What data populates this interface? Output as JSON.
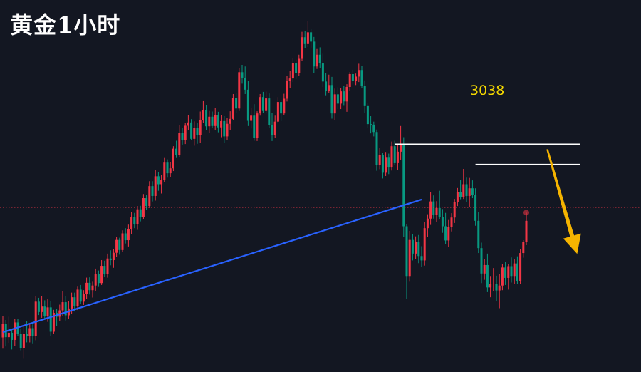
{
  "title": "黄金1小时",
  "chart_data": {
    "type": "candlestick",
    "title": "黄金1小时",
    "xlabel": "",
    "ylabel": "",
    "grid": false,
    "candles": [
      [
        3004.3,
        3012.1,
        3000.2,
        3009.3
      ],
      [
        3009.3,
        3010.7,
        3001.0,
        3004.4
      ],
      [
        3004.4,
        3011.9,
        3002.3,
        3006.0
      ],
      [
        3006.0,
        3007.4,
        2999.9,
        3003.4
      ],
      [
        3003.4,
        3011.2,
        3001.2,
        3009.8
      ],
      [
        3009.8,
        3011.1,
        3004.7,
        3005.7
      ],
      [
        3005.7,
        3007.4,
        2999.6,
        3000.4
      ],
      [
        3000.4,
        3008.5,
        2996.5,
        3005.7
      ],
      [
        3005.7,
        3010.3,
        3002.5,
        3004.7
      ],
      [
        3004.7,
        3009.6,
        3002.5,
        3007.7
      ],
      [
        3007.7,
        3009.1,
        3001.9,
        3004.9
      ],
      [
        3004.9,
        3019.3,
        3003.3,
        3017.4
      ],
      [
        3017.4,
        3018.8,
        3012.5,
        3013.6
      ],
      [
        3013.6,
        3019.4,
        3011.5,
        3015.6
      ],
      [
        3015.6,
        3017.9,
        3010.9,
        3012.1
      ],
      [
        3012.1,
        3018.5,
        3010.0,
        3015.3
      ],
      [
        3015.3,
        3017.7,
        3004.8,
        3006.4
      ],
      [
        3006.4,
        3014.4,
        3005.5,
        3013.3
      ],
      [
        3013.3,
        3014.7,
        3008.6,
        3011.9
      ],
      [
        3011.9,
        3016.3,
        3010.4,
        3014.2
      ],
      [
        3014.2,
        3021.3,
        3012.3,
        3017.2
      ],
      [
        3017.2,
        3019.4,
        3010.5,
        3012.4
      ],
      [
        3012.4,
        3017.6,
        3011.0,
        3014.9
      ],
      [
        3014.9,
        3020.7,
        3012.8,
        3019.0
      ],
      [
        3019.0,
        3020.7,
        3013.8,
        3015.8
      ],
      [
        3015.8,
        3022.9,
        3014.3,
        3021.8
      ],
      [
        3021.8,
        3023.5,
        3016.5,
        3017.4
      ],
      [
        3017.4,
        3021.6,
        3016.2,
        3020.3
      ],
      [
        3020.3,
        3026.2,
        3018.4,
        3024.3
      ],
      [
        3024.3,
        3026.3,
        3020.0,
        3021.6
      ],
      [
        3021.6,
        3024.7,
        3018.9,
        3023.3
      ],
      [
        3023.3,
        3029.5,
        3021.4,
        3027.5
      ],
      [
        3027.5,
        3028.8,
        3022.8,
        3024.2
      ],
      [
        3024.2,
        3032.6,
        3023.5,
        3030.5
      ],
      [
        3030.5,
        3032.4,
        3026.4,
        3027.6
      ],
      [
        3027.6,
        3035.0,
        3026.2,
        3033.2
      ],
      [
        3033.2,
        3036.2,
        3030.7,
        3032.6
      ],
      [
        3032.6,
        3036.7,
        3029.8,
        3035.3
      ],
      [
        3035.3,
        3041.1,
        3033.8,
        3040.0
      ],
      [
        3040.0,
        3040.8,
        3034.6,
        3036.3
      ],
      [
        3036.3,
        3043.5,
        3035.5,
        3042.4
      ],
      [
        3042.4,
        3044.3,
        3038.7,
        3039.9
      ],
      [
        3039.9,
        3045.6,
        3037.6,
        3043.9
      ],
      [
        3043.9,
        3050.3,
        3042.0,
        3048.3
      ],
      [
        3048.3,
        3049.9,
        3044.3,
        3045.7
      ],
      [
        3045.7,
        3052.4,
        3043.7,
        3051.2
      ],
      [
        3051.2,
        3052.5,
        3046.8,
        3048.3
      ],
      [
        3048.3,
        3056.8,
        3047.6,
        3055.3
      ],
      [
        3055.3,
        3056.5,
        3050.9,
        3052.4
      ],
      [
        3052.4,
        3061.5,
        3051.7,
        3059.7
      ],
      [
        3059.7,
        3061.5,
        3054.1,
        3056.1
      ],
      [
        3056.1,
        3065.6,
        3054.4,
        3063.3
      ],
      [
        3063.3,
        3064.7,
        3058.0,
        3060.4
      ],
      [
        3060.4,
        3063.7,
        3057.0,
        3061.9
      ],
      [
        3061.9,
        3070.0,
        3061.1,
        3068.3
      ],
      [
        3068.3,
        3069.5,
        3062.8,
        3064.4
      ],
      [
        3064.4,
        3068.4,
        3063.1,
        3066.2
      ],
      [
        3066.2,
        3074.3,
        3065.2,
        3073.4
      ],
      [
        3073.4,
        3076.3,
        3070.0,
        3071.1
      ],
      [
        3071.1,
        3082.0,
        3070.3,
        3079.2
      ],
      [
        3079.2,
        3080.9,
        3074.9,
        3076.6
      ],
      [
        3076.6,
        3082.9,
        3075.1,
        3081.8
      ],
      [
        3081.8,
        3085.8,
        3080.3,
        3083.0
      ],
      [
        3083.0,
        3084.2,
        3076.5,
        3077.0
      ],
      [
        3077.0,
        3083.4,
        3074.5,
        3080.9
      ],
      [
        3080.9,
        3082.7,
        3075.2,
        3078.4
      ],
      [
        3078.4,
        3087.0,
        3075.5,
        3083.8
      ],
      [
        3083.8,
        3090.8,
        3082.8,
        3087.6
      ],
      [
        3087.6,
        3089.4,
        3080.2,
        3081.6
      ],
      [
        3081.6,
        3087.2,
        3079.3,
        3085.1
      ],
      [
        3085.1,
        3087.0,
        3080.9,
        3081.7
      ],
      [
        3081.7,
        3088.3,
        3080.1,
        3085.6
      ],
      [
        3085.6,
        3086.9,
        3079.4,
        3081.2
      ],
      [
        3081.2,
        3085.7,
        3077.6,
        3083.5
      ],
      [
        3083.5,
        3085.3,
        3075.4,
        3077.9
      ],
      [
        3077.9,
        3084.7,
        3076.5,
        3082.5
      ],
      [
        3082.5,
        3087.1,
        3080.1,
        3084.3
      ],
      [
        3084.3,
        3093.4,
        3083.8,
        3091.9
      ],
      [
        3091.9,
        3093.7,
        3086.5,
        3088.1
      ],
      [
        3088.1,
        3102.9,
        3087.2,
        3101.4
      ],
      [
        3101.4,
        3104.1,
        3097.2,
        3099.4
      ],
      [
        3099.4,
        3103.5,
        3093.4,
        3095.0
      ],
      [
        3095.0,
        3098.2,
        3081.7,
        3083.6
      ],
      [
        3083.6,
        3088.3,
        3080.8,
        3085.5
      ],
      [
        3085.5,
        3089.7,
        3076.3,
        3077.3
      ],
      [
        3077.3,
        3087.1,
        3076.2,
        3086.3
      ],
      [
        3086.3,
        3093.4,
        3085.5,
        3092.3
      ],
      [
        3092.3,
        3094.2,
        3086.6,
        3087.2
      ],
      [
        3087.2,
        3094.3,
        3086.3,
        3091.8
      ],
      [
        3091.8,
        3093.6,
        3081.1,
        3082.1
      ],
      [
        3082.1,
        3086.4,
        3076.2,
        3078.5
      ],
      [
        3078.5,
        3085.5,
        3077.4,
        3083.3
      ],
      [
        3083.3,
        3092.3,
        3082.6,
        3090.5
      ],
      [
        3090.5,
        3091.2,
        3083.5,
        3086.3
      ],
      [
        3086.3,
        3093.5,
        3085.7,
        3091.7
      ],
      [
        3091.7,
        3100.0,
        3090.7,
        3098.2
      ],
      [
        3098.2,
        3101.8,
        3095.7,
        3099.1
      ],
      [
        3099.1,
        3106.6,
        3097.8,
        3104.6
      ],
      [
        3104.6,
        3106.0,
        3098.9,
        3101.1
      ],
      [
        3101.1,
        3107.8,
        3100.1,
        3106.3
      ],
      [
        3106.3,
        3116.2,
        3105.6,
        3114.2
      ],
      [
        3114.2,
        3116.6,
        3110.1,
        3111.7
      ],
      [
        3111.7,
        3120.1,
        3110.6,
        3116.0
      ],
      [
        3116.0,
        3117.4,
        3110.4,
        3112.6
      ],
      [
        3112.6,
        3114.3,
        3101.0,
        3103.5
      ],
      [
        3103.5,
        3109.9,
        3102.6,
        3107.8
      ],
      [
        3107.8,
        3110.5,
        3102.8,
        3104.6
      ],
      [
        3104.6,
        3108.2,
        3096.0,
        3098.0
      ],
      [
        3098.0,
        3101.1,
        3092.7,
        3094.6
      ],
      [
        3094.6,
        3100.5,
        3093.8,
        3096.7
      ],
      [
        3096.7,
        3099.7,
        3084.4,
        3086.3
      ],
      [
        3086.3,
        3095.4,
        3084.0,
        3093.3
      ],
      [
        3093.3,
        3095.9,
        3087.9,
        3089.9
      ],
      [
        3089.9,
        3095.7,
        3087.9,
        3094.4
      ],
      [
        3094.4,
        3096.5,
        3089.1,
        3090.7
      ],
      [
        3090.7,
        3097.0,
        3086.9,
        3096.0
      ],
      [
        3096.0,
        3101.4,
        3094.5,
        3100.7
      ],
      [
        3100.7,
        3102.3,
        3096.9,
        3098.1
      ],
      [
        3098.1,
        3100.9,
        3096.7,
        3099.8
      ],
      [
        3099.8,
        3104.5,
        3097.8,
        3102.2
      ],
      [
        3102.2,
        3103.6,
        3095.6,
        3096.5
      ],
      [
        3096.5,
        3098.4,
        3086.6,
        3089.0
      ],
      [
        3089.0,
        3090.2,
        3081.0,
        3082.4
      ],
      [
        3082.4,
        3085.3,
        3079.0,
        3082.2
      ],
      [
        3082.2,
        3083.3,
        3077.9,
        3079.5
      ],
      [
        3079.5,
        3080.4,
        3065.3,
        3067.4
      ],
      [
        3067.4,
        3073.7,
        3065.9,
        3071.0
      ],
      [
        3071.0,
        3072.0,
        3062.5,
        3064.6
      ],
      [
        3064.6,
        3072.2,
        3063.4,
        3070.1
      ],
      [
        3070.1,
        3071.6,
        3064.1,
        3066.5
      ],
      [
        3066.5,
        3076.0,
        3065.4,
        3074.3
      ],
      [
        3074.3,
        3076.3,
        3067.5,
        3068.1
      ],
      [
        3068.1,
        3074.7,
        3065.5,
        3072.3
      ],
      [
        3072.3,
        3081.7,
        3069.4,
        3074.8
      ],
      [
        3074.8,
        3077.6,
        3041.1,
        3045.0
      ],
      [
        3045.0,
        3045.9,
        3018.4,
        3026.8
      ],
      [
        3026.8,
        3043.3,
        3024.7,
        3040.0
      ],
      [
        3040.0,
        3042.0,
        3032.5,
        3035.0
      ],
      [
        3035.0,
        3041.3,
        3032.9,
        3039.4
      ],
      [
        3039.4,
        3041.8,
        3031.5,
        3034.1
      ],
      [
        3034.1,
        3037.7,
        3030.1,
        3032.5
      ],
      [
        3032.5,
        3046.5,
        3030.6,
        3044.3
      ],
      [
        3044.3,
        3049.4,
        3041.0,
        3047.8
      ],
      [
        3047.8,
        3057.4,
        3045.5,
        3054.1
      ],
      [
        3054.1,
        3056.3,
        3047.8,
        3049.3
      ],
      [
        3049.3,
        3054.2,
        3046.6,
        3051.7
      ],
      [
        3051.7,
        3058.0,
        3047.5,
        3048.5
      ],
      [
        3048.5,
        3051.3,
        3042.6,
        3045.0
      ],
      [
        3045.0,
        3049.9,
        3038.4,
        3039.8
      ],
      [
        3039.8,
        3047.3,
        3037.5,
        3044.8
      ],
      [
        3044.8,
        3049.8,
        3043.1,
        3048.2
      ],
      [
        3048.2,
        3055.0,
        3046.2,
        3053.9
      ],
      [
        3053.9,
        3059.0,
        3052.4,
        3057.4
      ],
      [
        3057.4,
        3062.0,
        3054.9,
        3055.7
      ],
      [
        3055.7,
        3066.0,
        3055.0,
        3060.4
      ],
      [
        3060.4,
        3062.8,
        3054.0,
        3056.1
      ],
      [
        3056.1,
        3062.7,
        3052.0,
        3058.9
      ],
      [
        3058.9,
        3061.8,
        3055.3,
        3056.5
      ],
      [
        3056.5,
        3058.9,
        3045.2,
        3047.0
      ],
      [
        3047.0,
        3050.2,
        3035.2,
        3037.0
      ],
      [
        3037.0,
        3039.0,
        3024.2,
        3027.7
      ],
      [
        3027.7,
        3033.0,
        3025.4,
        3030.8
      ],
      [
        3030.8,
        3035.0,
        3020.9,
        3022.6
      ],
      [
        3022.6,
        3026.8,
        3019.0,
        3023.8
      ],
      [
        3023.8,
        3029.7,
        3021.3,
        3024.0
      ],
      [
        3024.0,
        3026.9,
        3017.5,
        3021.5
      ],
      [
        3021.5,
        3027.4,
        3015.0,
        3023.3
      ],
      [
        3023.3,
        3031.3,
        3021.6,
        3029.9
      ],
      [
        3029.9,
        3032.0,
        3023.5,
        3026.1
      ],
      [
        3026.1,
        3031.2,
        3021.8,
        3030.4
      ],
      [
        3030.4,
        3033.6,
        3024.4,
        3026.8
      ],
      [
        3026.8,
        3033.1,
        3024.0,
        3031.4
      ],
      [
        3031.4,
        3034.0,
        3023.9,
        3024.9
      ],
      [
        3024.9,
        3036.6,
        3024.0,
        3035.2
      ],
      [
        3035.2,
        3039.9,
        3033.5,
        3039.2
      ],
      [
        3039.2,
        3050.0,
        3038.1,
        3047.0
      ]
    ],
    "levels": [
      {
        "label": "3038",
        "price": 3075.0
      },
      {
        "price": 3067.6
      }
    ],
    "current_price": 3051.9,
    "trendline": {
      "from": [
        0,
        3006.2
      ],
      "to": [
        140,
        3054.8
      ]
    },
    "projection": {
      "from": [
        182,
        3073.2
      ],
      "to": [
        192,
        3034.9
      ]
    },
    "colors": {
      "background": "#131722",
      "up": "#f23645",
      "down": "#089981",
      "trendline": "#2962ff",
      "levels": "#ffffff",
      "price_line": "#f23645",
      "label": "#f5d800",
      "arrow": "#f5b400"
    }
  }
}
